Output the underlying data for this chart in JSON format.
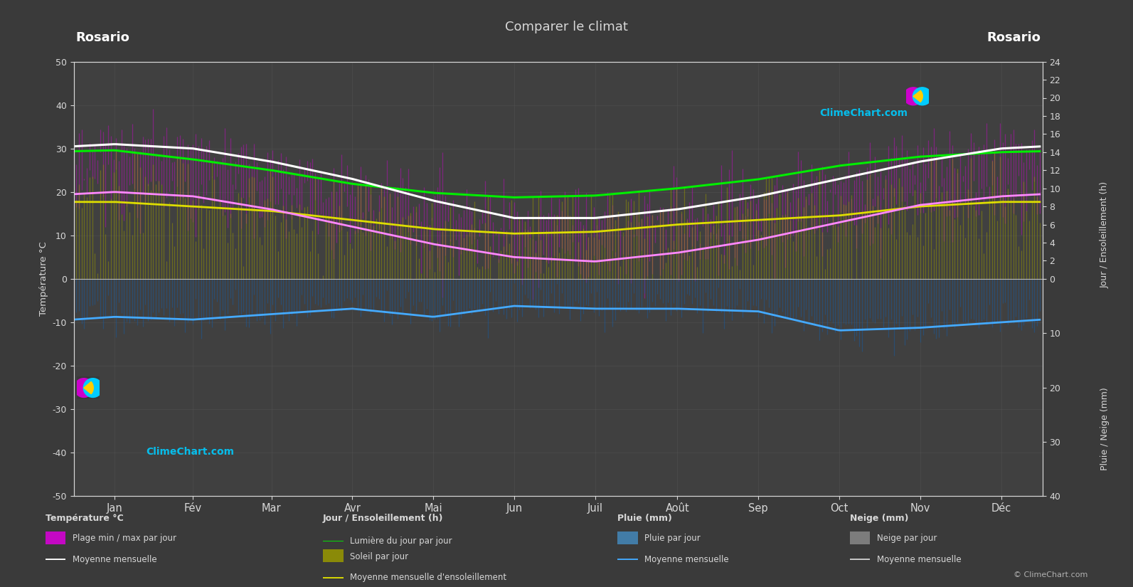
{
  "title": "Comparer le climat",
  "location": "Rosario",
  "bg_color": "#3a3a3a",
  "plot_bg_color": "#404040",
  "text_color": "#d8d8d8",
  "grid_color": "#555555",
  "months": [
    "Jan",
    "Fév",
    "Mar",
    "Avr",
    "Mai",
    "Jun",
    "Juil",
    "Août",
    "Sep",
    "Oct",
    "Nov",
    "Déc"
  ],
  "ylim_temp": [
    -50,
    50
  ],
  "temp_max_monthly": [
    31,
    30,
    27,
    23,
    18,
    14,
    14,
    16,
    19,
    23,
    27,
    30
  ],
  "temp_min_monthly": [
    20,
    19,
    16,
    12,
    8,
    5,
    4,
    6,
    9,
    13,
    17,
    19
  ],
  "sunshine_monthly": [
    8.5,
    8.0,
    7.5,
    6.5,
    5.5,
    5.0,
    5.2,
    6.0,
    6.5,
    7.0,
    8.0,
    8.5
  ],
  "daylight_monthly": [
    14.2,
    13.2,
    12.0,
    10.5,
    9.5,
    9.0,
    9.2,
    10.0,
    11.0,
    12.5,
    13.5,
    14.0
  ],
  "rain_monthly_mm": [
    7.0,
    7.5,
    6.5,
    5.5,
    7.0,
    5.0,
    5.5,
    5.5,
    6.0,
    9.5,
    9.0,
    8.0
  ],
  "color_temp_fill": "#dd00dd",
  "color_sun_fill": "#999900",
  "color_daylight_line": "#00ee00",
  "color_sunshine_line": "#dddd00",
  "color_temp_mean_top": "#ffffff",
  "color_temp_mean_bot": "#ff88ff",
  "color_rain_fill": "#1a5a9a",
  "color_rain_line": "#44aaff",
  "ylabel_left": "Température °C",
  "ylabel_right_top": "Jour / Ensoleillement (h)",
  "ylabel_right_bot": "Pluie / Neige (mm)",
  "right_sun_ticks": [
    0,
    2,
    4,
    6,
    8,
    10,
    12,
    14,
    16,
    18,
    20,
    22,
    24
  ],
  "right_rain_ticks": [
    0,
    10,
    20,
    30,
    40
  ],
  "left_temp_ticks": [
    -50,
    -40,
    -30,
    -20,
    -10,
    0,
    10,
    20,
    30,
    40,
    50
  ]
}
